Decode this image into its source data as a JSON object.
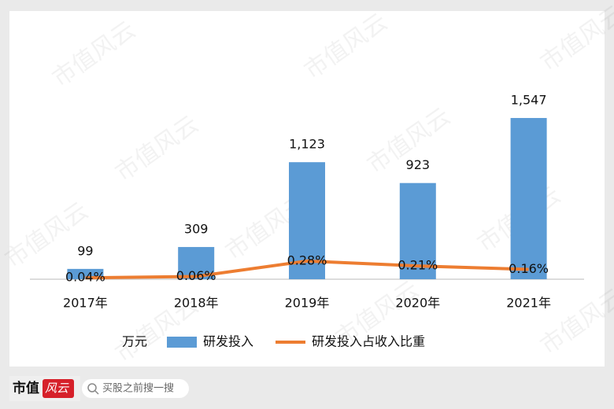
{
  "chart_data": {
    "type": "bar",
    "categories": [
      "2017年",
      "2018年",
      "2019年",
      "2020年",
      "2021年"
    ],
    "unit": "万元",
    "series": [
      {
        "name": "研发投入",
        "color": "#5b9bd5",
        "type": "bar",
        "values": [
          99,
          309,
          1123,
          923,
          1547
        ],
        "value_labels": [
          "99",
          "309",
          "1,123",
          "923",
          "1,547"
        ]
      },
      {
        "name": "研发投入占收入比重",
        "color": "#ed7d31",
        "type": "line",
        "axis": "y2",
        "values": [
          0.04,
          0.06,
          0.28,
          0.21,
          0.16
        ],
        "value_labels": [
          "0.04%",
          "0.06%",
          "0.28%",
          "0.21%",
          "0.16%"
        ]
      }
    ],
    "ylim": [
      0,
      2000
    ],
    "y2lim": [
      0.02,
      3.0
    ]
  },
  "watermark": "市值风云",
  "footer": {
    "logo_main": "市值",
    "logo_accent": "风云",
    "search": "买股之前搜一搜"
  }
}
